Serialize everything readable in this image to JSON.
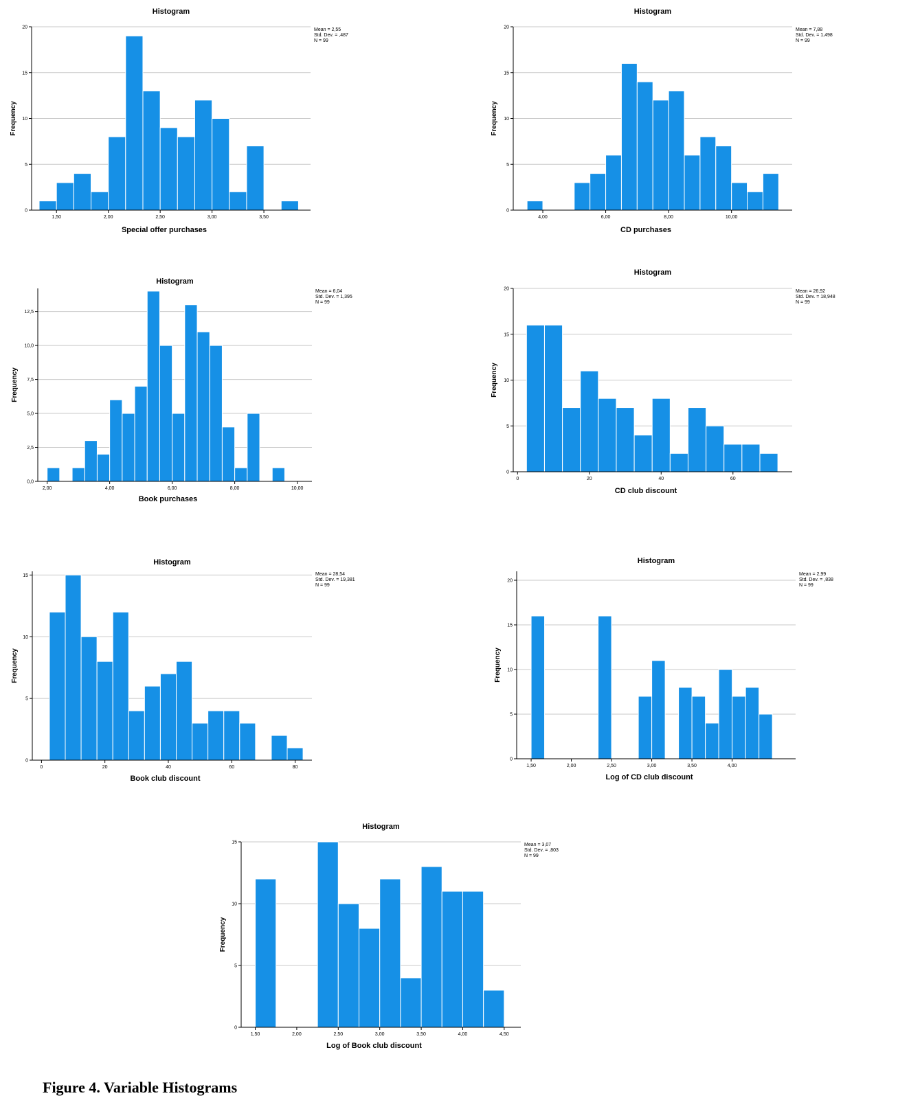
{
  "figure_caption": "Figure 4. Variable Histograms",
  "colors": {
    "bar": "#1690e6",
    "bar_stroke": "#ffffff",
    "grid": "#c8c8c8",
    "axis": "#000000"
  },
  "chart_data": [
    {
      "type": "bar",
      "title": "Histogram",
      "xlabel": "Special offer purchases",
      "ylabel": "Frequency",
      "stats": [
        "Mean = 2,55",
        "Std. Dev. = ,487",
        "N = 99"
      ],
      "bins_start": 1.333,
      "bin_width": 0.1667,
      "values": [
        1,
        3,
        4,
        2,
        8,
        19,
        13,
        9,
        8,
        12,
        10,
        2,
        7,
        0,
        1
      ],
      "xlim": [
        1.26,
        3.95
      ],
      "ylim": [
        0,
        20
      ],
      "xticks": [
        1.5,
        2.0,
        2.5,
        3.0,
        3.5
      ],
      "xtick_labels": [
        "1,50",
        "2,00",
        "2,50",
        "3,00",
        "3,50"
      ],
      "yticks": [
        0,
        5,
        10,
        15,
        20
      ],
      "ytick_labels": [
        "0",
        "5",
        "10",
        "15",
        "20"
      ]
    },
    {
      "type": "bar",
      "title": "Histogram",
      "xlabel": "CD purchases",
      "ylabel": "Frequency",
      "stats": [
        "Mean = 7,88",
        "Std. Dev. = 1,498",
        "N = 99"
      ],
      "bins_start": 3.5,
      "bin_width": 0.5,
      "values": [
        1,
        0,
        0,
        3,
        4,
        6,
        16,
        14,
        12,
        13,
        6,
        8,
        7,
        3,
        2,
        4
      ],
      "xlim": [
        3.06,
        11.93
      ],
      "ylim": [
        0,
        20
      ],
      "xticks": [
        4,
        6,
        8,
        10
      ],
      "xtick_labels": [
        "4,00",
        "6,00",
        "8,00",
        "10,00"
      ],
      "yticks": [
        0,
        5,
        10,
        15,
        20
      ],
      "ytick_labels": [
        "0",
        "5",
        "10",
        "15",
        "20"
      ]
    },
    {
      "type": "bar",
      "title": "Histogram",
      "xlabel": "Book purchases",
      "ylabel": "Frequency",
      "stats": [
        "Mean = 6,04",
        "Std. Dev. = 1,395",
        "N = 99"
      ],
      "bins_start": 2.0,
      "bin_width": 0.4,
      "values": [
        1,
        0,
        1,
        3,
        2,
        6,
        5,
        7,
        14,
        10,
        5,
        13,
        11,
        10,
        4,
        1,
        5,
        0,
        1
      ],
      "xlim": [
        1.7,
        10.47
      ],
      "ylim": [
        0,
        14.2
      ],
      "xticks": [
        2,
        4,
        6,
        8,
        10
      ],
      "xtick_labels": [
        "2,00",
        "4,00",
        "6,00",
        "8,00",
        "10,00"
      ],
      "yticks": [
        0,
        2.5,
        5,
        7.5,
        10,
        12.5
      ],
      "ytick_labels": [
        "0,0",
        "2,5",
        "5,0",
        "7,5",
        "10,0",
        "12,5"
      ]
    },
    {
      "type": "bar",
      "title": "Histogram",
      "xlabel": "CD club discount",
      "ylabel": "Frequency",
      "stats": [
        "Mean = 26,92",
        "Std. Dev. = 18,948",
        "N = 99"
      ],
      "bins_start": 2.5,
      "bin_width": 5,
      "values": [
        16,
        16,
        7,
        11,
        8,
        7,
        4,
        8,
        2,
        7,
        5,
        3,
        3,
        2
      ],
      "xlim": [
        -1.2,
        76.5
      ],
      "ylim": [
        0,
        20
      ],
      "xticks": [
        0,
        20,
        40,
        60
      ],
      "xtick_labels": [
        "0",
        "20",
        "40",
        "60"
      ],
      "yticks": [
        0,
        5,
        10,
        15,
        20
      ],
      "ytick_labels": [
        "0",
        "5",
        "10",
        "15",
        "20"
      ]
    },
    {
      "type": "bar",
      "title": "Histogram",
      "xlabel": "Book club discount",
      "ylabel": "Frequency",
      "stats": [
        "Mean = 28,54",
        "Std. Dev. = 19,381",
        "N = 99"
      ],
      "bins_start": 2.5,
      "bin_width": 5,
      "values": [
        12,
        15,
        10,
        8,
        12,
        4,
        6,
        7,
        8,
        3,
        4,
        4,
        3,
        0,
        2,
        1
      ],
      "xlim": [
        -2.9,
        85.3
      ],
      "ylim": [
        0,
        15.3
      ],
      "xticks": [
        0,
        20,
        40,
        60,
        80
      ],
      "xtick_labels": [
        "0",
        "20",
        "40",
        "60",
        "80"
      ],
      "yticks": [
        0,
        5,
        10,
        15
      ],
      "ytick_labels": [
        "0",
        "5",
        "10",
        "15"
      ]
    },
    {
      "type": "bar",
      "title": "Histogram",
      "xlabel": "Log of CD club discount",
      "ylabel": "Frequency",
      "stats": [
        "Mean = 2,99",
        "Std. Dev. = ,838",
        "N = 99"
      ],
      "bins_start": 1.5,
      "bin_width": 0.1667,
      "values": [
        16,
        0,
        0,
        0,
        0,
        16,
        0,
        0,
        7,
        11,
        0,
        8,
        7,
        4,
        10,
        7,
        8,
        5
      ],
      "xlim": [
        1.32,
        4.79
      ],
      "ylim": [
        0,
        21
      ],
      "xticks": [
        1.5,
        2.0,
        2.5,
        3.0,
        3.5,
        4.0
      ],
      "xtick_labels": [
        "1,50",
        "2,00",
        "2,50",
        "3,00",
        "3,50",
        "4,00"
      ],
      "yticks": [
        0,
        5,
        10,
        15,
        20
      ],
      "ytick_labels": [
        "0",
        "5",
        "10",
        "15",
        "20"
      ]
    },
    {
      "type": "bar",
      "title": "Histogram",
      "xlabel": "Log of Book club discount",
      "ylabel": "Frequency",
      "stats": [
        "Mean = 3,07",
        "Std. Dev. = ,803",
        "N = 99"
      ],
      "bins_start": 1.5,
      "bin_width": 0.25,
      "values": [
        12,
        0,
        0,
        15,
        10,
        8,
        12,
        4,
        13,
        11,
        11,
        3
      ],
      "xlim": [
        1.33,
        4.7
      ],
      "ylim": [
        0,
        15
      ],
      "xticks": [
        1.5,
        2.0,
        2.5,
        3.0,
        3.5,
        4.0,
        4.5
      ],
      "xtick_labels": [
        "1,50",
        "2,00",
        "2,50",
        "3,00",
        "3,50",
        "4,00",
        "4,50"
      ],
      "yticks": [
        0,
        5,
        10,
        15
      ],
      "ytick_labels": [
        "0",
        "5",
        "10",
        "15"
      ]
    }
  ]
}
